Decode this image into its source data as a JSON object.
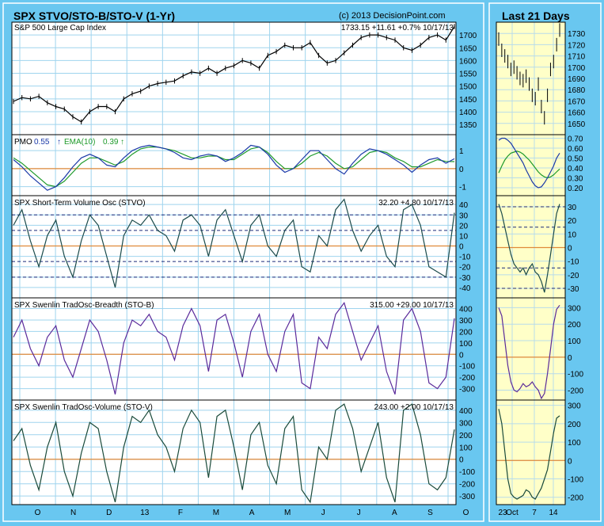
{
  "main_title": "SPX STVO/STO-B/STO-V (1-Yr)",
  "copyright": "(c) 2013 DecisionPoint.com",
  "side_title": "Last 21 Days",
  "x_labels": [
    "O",
    "N",
    "D",
    "13",
    "F",
    "M",
    "A",
    "M",
    "J",
    "J",
    "A",
    "S",
    "O"
  ],
  "side_x_labels": [
    "23",
    "Oct",
    "7",
    "14"
  ],
  "colors": {
    "background": "#69c7f0",
    "side_panel": "#ffffc8",
    "price": "#000000",
    "pmo": "#1c3aa8",
    "ema": "#1e9a2a",
    "stvo": "#1a4a4a",
    "stob": "#5a2a9a",
    "stov": "#1a4a3a",
    "zero_line": "#e08a3a",
    "signal_lines": "#1c2a7a"
  },
  "chart_data": [
    {
      "type": "line",
      "title": "S&P 500 Large Cap Index",
      "readout": "1733.15  +11.61  +0.7%  10/17/13",
      "ylim": [
        1310,
        1750
      ],
      "yticks": [
        1350,
        1400,
        1450,
        1500,
        1550,
        1600,
        1650,
        1700
      ],
      "x": [
        0,
        5,
        10,
        15,
        20,
        25,
        30,
        35,
        40,
        45,
        50,
        55,
        60,
        65,
        70,
        75,
        80,
        85,
        90,
        95,
        100,
        105,
        110,
        115,
        120,
        125,
        130,
        135,
        140,
        145,
        150,
        155,
        160,
        165,
        170,
        175,
        180,
        185,
        190,
        195,
        200,
        205,
        210,
        215,
        220,
        225,
        230,
        235,
        240,
        245,
        250,
        255,
        260
      ],
      "series": [
        {
          "name": "S&P 500",
          "values": [
            1440,
            1455,
            1450,
            1460,
            1435,
            1420,
            1410,
            1380,
            1360,
            1400,
            1420,
            1420,
            1400,
            1450,
            1470,
            1480,
            1500,
            1510,
            1515,
            1520,
            1540,
            1555,
            1550,
            1570,
            1550,
            1570,
            1580,
            1600,
            1590,
            1570,
            1620,
            1635,
            1660,
            1650,
            1650,
            1670,
            1620,
            1590,
            1600,
            1630,
            1660,
            1690,
            1700,
            1700,
            1690,
            1680,
            1650,
            1640,
            1660,
            1690,
            1700,
            1680,
            1733
          ]
        }
      ],
      "side_ylim": [
        1640,
        1740
      ],
      "side_yticks": [
        1650,
        1660,
        1670,
        1680,
        1690,
        1700,
        1710,
        1720,
        1730
      ],
      "side_values": [
        1725,
        1715,
        1710,
        1705,
        1698,
        1700,
        1695,
        1690,
        1688,
        1692,
        1685,
        1675,
        1672,
        1685,
        1665,
        1655,
        1675,
        1698,
        1705,
        1720,
        1733
      ]
    },
    {
      "type": "line",
      "title": "PMO",
      "pmo_value": "0.55",
      "ema_label": "EMA(10)",
      "ema_value": "0.39",
      "ylim": [
        -1.5,
        1.8
      ],
      "yticks": [
        -1,
        0,
        1
      ],
      "series": [
        {
          "name": "PMO",
          "values": [
            0.5,
            0.1,
            -0.4,
            -0.8,
            -1.2,
            -1.0,
            -0.5,
            0.1,
            0.6,
            0.8,
            0.6,
            0.2,
            0.1,
            0.6,
            1.0,
            1.2,
            1.3,
            1.2,
            1.1,
            0.9,
            0.6,
            0.5,
            0.7,
            0.8,
            0.7,
            0.4,
            0.6,
            0.9,
            1.3,
            1.2,
            0.8,
            0.2,
            -0.2,
            0.0,
            0.5,
            1.0,
            1.0,
            0.5,
            0.0,
            -0.3,
            0.3,
            0.8,
            1.1,
            1.0,
            0.8,
            0.5,
            0.2,
            -0.2,
            0.2,
            0.5,
            0.6,
            0.3,
            0.55
          ]
        },
        {
          "name": "EMA(10)",
          "values": [
            0.6,
            0.3,
            -0.1,
            -0.5,
            -0.9,
            -1.0,
            -0.7,
            -0.2,
            0.3,
            0.6,
            0.6,
            0.4,
            0.2,
            0.4,
            0.8,
            1.1,
            1.2,
            1.2,
            1.1,
            1.0,
            0.8,
            0.6,
            0.6,
            0.7,
            0.7,
            0.5,
            0.5,
            0.8,
            1.1,
            1.2,
            0.9,
            0.4,
            0.0,
            0.0,
            0.3,
            0.7,
            0.9,
            0.7,
            0.3,
            0.0,
            0.1,
            0.5,
            0.9,
            1.0,
            0.9,
            0.6,
            0.4,
            0.1,
            0.1,
            0.3,
            0.5,
            0.4,
            0.39
          ]
        }
      ],
      "side_ylim": [
        0.12,
        0.72
      ],
      "side_yticks": [
        0.2,
        0.3,
        0.4,
        0.5,
        0.6,
        0.7
      ],
      "side_pmo": [
        0.68,
        0.7,
        0.7,
        0.68,
        0.65,
        0.6,
        0.55,
        0.5,
        0.45,
        0.38,
        0.32,
        0.26,
        0.22,
        0.2,
        0.21,
        0.25,
        0.3,
        0.36,
        0.42,
        0.5,
        0.55
      ],
      "side_ema": [
        0.35,
        0.42,
        0.48,
        0.52,
        0.55,
        0.56,
        0.57,
        0.56,
        0.54,
        0.51,
        0.48,
        0.44,
        0.4,
        0.36,
        0.33,
        0.31,
        0.3,
        0.31,
        0.33,
        0.36,
        0.39
      ]
    },
    {
      "type": "line",
      "title": "SPX Short-Term Volume Osc (STVO)",
      "readout": "32.20  +4.80  10/17/13",
      "ylim": [
        -50,
        47
      ],
      "yticks": [
        -40,
        -30,
        -20,
        -10,
        0,
        10,
        20,
        30,
        40
      ],
      "signal_lines": [
        30,
        15,
        -15,
        -30
      ],
      "series": [
        {
          "name": "STVO",
          "values": [
            20,
            35,
            5,
            -20,
            10,
            25,
            -10,
            -30,
            5,
            30,
            20,
            -10,
            -40,
            10,
            25,
            20,
            30,
            15,
            10,
            -5,
            25,
            30,
            20,
            -10,
            25,
            35,
            10,
            -15,
            20,
            30,
            0,
            -10,
            15,
            25,
            -20,
            -25,
            10,
            0,
            35,
            45,
            15,
            -5,
            10,
            20,
            -10,
            -20,
            35,
            40,
            20,
            -20,
            -25,
            -30,
            32
          ]
        }
      ],
      "side_ylim": [
        -37,
        37
      ],
      "side_yticks": [
        -30,
        -20,
        -10,
        0,
        10,
        20,
        30
      ],
      "side_values": [
        32,
        25,
        15,
        5,
        -5,
        -12,
        -15,
        -18,
        -15,
        -20,
        -15,
        -12,
        -18,
        -20,
        -25,
        -33,
        -20,
        -5,
        10,
        25,
        32
      ]
    },
    {
      "type": "line",
      "title": "SPX Swenlin TradOsc-Breadth (STO-B)",
      "readout": "315.00  +29.00  10/17/13",
      "ylim": [
        -400,
        480
      ],
      "yticks": [
        -300,
        -200,
        -100,
        0,
        100,
        200,
        300,
        400
      ],
      "series": [
        {
          "name": "STO-B",
          "values": [
            150,
            300,
            50,
            -100,
            150,
            250,
            -50,
            -200,
            50,
            300,
            200,
            -50,
            -350,
            100,
            300,
            250,
            350,
            200,
            150,
            -50,
            250,
            400,
            250,
            -150,
            300,
            350,
            100,
            -200,
            200,
            350,
            0,
            -150,
            200,
            350,
            -250,
            -300,
            150,
            50,
            350,
            450,
            200,
            -50,
            100,
            250,
            -150,
            -350,
            300,
            400,
            200,
            -250,
            -300,
            -200,
            315
          ]
        }
      ],
      "side_ylim": [
        -260,
        350
      ],
      "side_yticks": [
        -200,
        -100,
        0,
        100,
        200,
        300
      ],
      "side_values": [
        300,
        250,
        100,
        -50,
        -150,
        -200,
        -210,
        -190,
        -160,
        -180,
        -170,
        -150,
        -180,
        -200,
        -250,
        -220,
        -100,
        50,
        200,
        290,
        315
      ]
    },
    {
      "type": "line",
      "title": "SPX Swenlin TradOsc-Volume (STO-V)",
      "readout": "243.00  +2.00  10/17/13",
      "ylim": [
        -370,
        470
      ],
      "yticks": [
        -300,
        -200,
        -100,
        0,
        100,
        200,
        300,
        400
      ],
      "series": [
        {
          "name": "STO-V",
          "values": [
            150,
            250,
            -50,
            -250,
            100,
            300,
            -100,
            -300,
            50,
            300,
            250,
            -100,
            -350,
            100,
            350,
            300,
            400,
            200,
            100,
            -100,
            250,
            400,
            300,
            -150,
            350,
            400,
            100,
            -250,
            200,
            300,
            -50,
            -200,
            250,
            350,
            -250,
            -350,
            100,
            0,
            400,
            450,
            250,
            -100,
            100,
            300,
            -150,
            -350,
            400,
            450,
            200,
            -200,
            -250,
            -150,
            243
          ]
        }
      ],
      "side_ylim": [
        -240,
        320
      ],
      "side_yticks": [
        -200,
        -100,
        0,
        100,
        200,
        300
      ],
      "side_values": [
        280,
        200,
        50,
        -100,
        -180,
        -200,
        -210,
        -200,
        -190,
        -160,
        -170,
        -200,
        -210,
        -180,
        -150,
        -100,
        -50,
        50,
        150,
        230,
        243
      ]
    }
  ]
}
